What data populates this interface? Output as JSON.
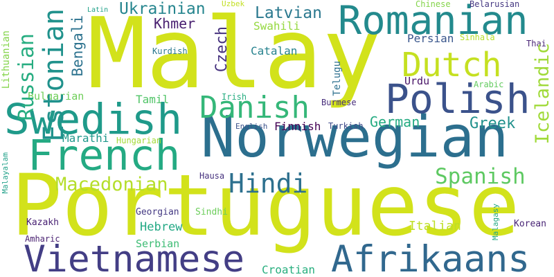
{
  "words": [
    {
      "text": "Malay",
      "color": "#d2e21b"
    },
    {
      "text": "Portuguese",
      "color": "#d2e21b"
    },
    {
      "text": "Norwegian",
      "color": "#2c6f8e"
    },
    {
      "text": "Swedish",
      "color": "#1f9a8a"
    },
    {
      "text": "French",
      "color": "#24aa83"
    },
    {
      "text": "Romanian",
      "color": "#238a8d"
    },
    {
      "text": "Polish",
      "color": "#3b528b"
    },
    {
      "text": "Vietnamese",
      "color": "#433e85"
    },
    {
      "text": "Afrikaans",
      "color": "#31688e"
    },
    {
      "text": "Dutch",
      "color": "#c5e021"
    },
    {
      "text": "Danish",
      "color": "#35b779"
    },
    {
      "text": "Hindi",
      "color": "#2d708e"
    },
    {
      "text": "Estonian",
      "color": "#20928c"
    },
    {
      "text": "Macedonian",
      "color": "#b5de2b"
    },
    {
      "text": "Russian",
      "color": "#27ad81"
    },
    {
      "text": "Spanish",
      "color": "#5ec962"
    },
    {
      "text": "Icelandic",
      "color": "#a0da39"
    },
    {
      "text": "Ukrainian",
      "color": "#25858e"
    },
    {
      "text": "Latvian",
      "color": "#2a788e"
    },
    {
      "text": "Czech",
      "color": "#46327e"
    },
    {
      "text": "Bengali",
      "color": "#2c728e"
    },
    {
      "text": "Khmer",
      "color": "#481f70"
    },
    {
      "text": "German",
      "color": "#25ab82"
    },
    {
      "text": "Greek",
      "color": "#21918c"
    },
    {
      "text": "Swahili",
      "color": "#95d840"
    },
    {
      "text": "Hebrew",
      "color": "#22a884"
    },
    {
      "text": "Italian",
      "color": "#bddf26"
    },
    {
      "text": "Croatian",
      "color": "#29af7f"
    },
    {
      "text": "Serbian",
      "color": "#3dbc74"
    },
    {
      "text": "Catalan",
      "color": "#26828e"
    },
    {
      "text": "Marathi",
      "color": "#1f988b"
    },
    {
      "text": "Bulgarian",
      "color": "#6ece58"
    },
    {
      "text": "Tamil",
      "color": "#52c569"
    },
    {
      "text": "Persian",
      "color": "#39568c"
    },
    {
      "text": "Finnish",
      "color": "#440154"
    },
    {
      "text": "Telugu",
      "color": "#2d708e"
    },
    {
      "text": "Lithuanian",
      "color": "#84d44b"
    },
    {
      "text": "Urdu",
      "color": "#481467"
    },
    {
      "text": "Korean",
      "color": "#482475"
    },
    {
      "text": "Kazakh",
      "color": "#482173"
    },
    {
      "text": "Georgian",
      "color": "#443983"
    },
    {
      "text": "Sindhi",
      "color": "#6ccd5a"
    },
    {
      "text": "Kurdish",
      "color": "#2a788e"
    },
    {
      "text": "Hungarian",
      "color": "#a2da37"
    },
    {
      "text": "Turkish",
      "color": "#3e4a89"
    },
    {
      "text": "Burmese",
      "color": "#472d7b"
    },
    {
      "text": "English",
      "color": "#3b528b"
    },
    {
      "text": "Irish",
      "color": "#27ad81"
    },
    {
      "text": "Arabic",
      "color": "#63cb5f"
    },
    {
      "text": "Amharic",
      "color": "#481f70"
    },
    {
      "text": "Hausa",
      "color": "#46327e"
    },
    {
      "text": "Malagasy",
      "color": "#22a884"
    },
    {
      "text": "Malayalam",
      "color": "#1fa088"
    },
    {
      "text": "Sinhala",
      "color": "#b8de29"
    },
    {
      "text": "Thai",
      "color": "#482475"
    },
    {
      "text": "Chinese",
      "color": "#84d44b"
    },
    {
      "text": "Belarusian",
      "color": "#453882"
    },
    {
      "text": "Uzbek",
      "color": "#c2df23"
    },
    {
      "text": "Latin",
      "color": "#1fa088"
    }
  ]
}
